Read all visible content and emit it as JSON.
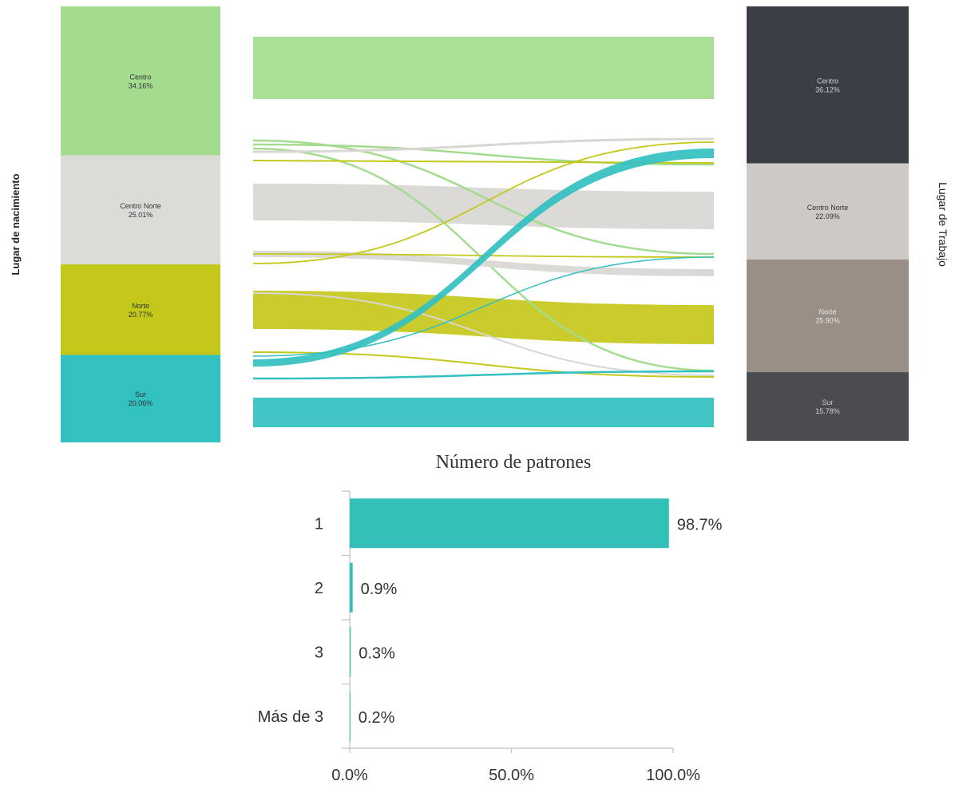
{
  "chart_data": [
    {
      "type": "sankey",
      "left_axis_label": "Lugar de nacimiento",
      "right_axis_label": "Lugar de Trabajo",
      "left_nodes": [
        {
          "name": "Centro",
          "value_label": "34.16%",
          "value": 34.16,
          "color": "#a3dc8e"
        },
        {
          "name": "Centro Norte",
          "value_label": "25.01%",
          "value": 25.01,
          "color": "#dddbd8"
        },
        {
          "name": "Norte",
          "value_label": "20.77%",
          "value": 20.77,
          "color": "#c4c81a"
        },
        {
          "name": "Sur",
          "value_label": "20.06%",
          "value": 20.06,
          "color": "#33c0c0"
        }
      ],
      "right_nodes": [
        {
          "name": "Centro",
          "value_label": "36.12%",
          "value": 36.12,
          "color": "#3a3f45"
        },
        {
          "name": "Centro Norte",
          "value_label": "22.09%",
          "value": 22.09,
          "color": "#cdc9c4"
        },
        {
          "name": "Norte",
          "value_label": "25.90%",
          "value": 25.9,
          "color": "#9a8f87"
        },
        {
          "name": "Sur",
          "value_label": "15.78%",
          "value": 15.78,
          "color": "#4a4c4f"
        }
      ],
      "flow_colors": {
        "Centro": "#a3dc8e",
        "Centro Norte": "#d9d7d4",
        "Norte": "#c4c81a",
        "Sur": "#33c0c0"
      }
    },
    {
      "type": "bar",
      "orientation": "horizontal",
      "title": "Número de patrones",
      "categories": [
        "1",
        "2",
        "3",
        "Más de 3"
      ],
      "values": [
        98.7,
        0.9,
        0.3,
        0.2
      ],
      "value_labels": [
        "98.7%",
        "0.9%",
        "0.3%",
        "0.2%"
      ],
      "xlim": [
        0,
        100
      ],
      "x_tick_labels": [
        "0.0%",
        "50.0%",
        "100.0%"
      ],
      "bar_color": "#33c0b8"
    }
  ]
}
